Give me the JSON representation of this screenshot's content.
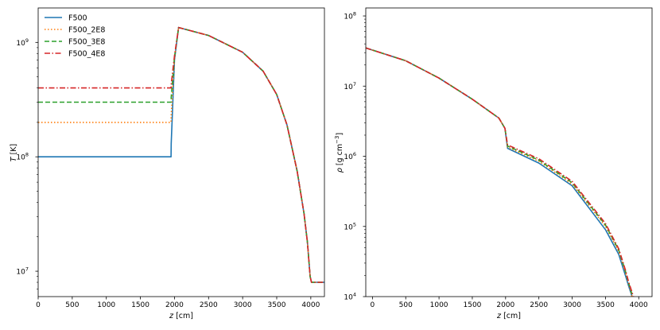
{
  "chart_data": [
    {
      "type": "line",
      "xlabel_var": "z",
      "xlabel_unit": "[cm]",
      "ylabel_var": "T",
      "ylabel_unit": "[K]",
      "xlim": [
        0,
        4200
      ],
      "ylim": [
        6000000.0,
        2000000000.0
      ],
      "yscale": "log",
      "xticks": [
        0,
        500,
        1000,
        1500,
        2000,
        2500,
        3000,
        3500,
        4000
      ],
      "yticks": [
        {
          "exp": 7,
          "value": 10000000.0
        },
        {
          "exp": 8,
          "value": 100000000.0
        },
        {
          "exp": 9,
          "value": 1000000000.0
        }
      ],
      "legend_position": "upper left",
      "series": [
        {
          "name": "F500",
          "color": "#1f77b4",
          "dash": "solid",
          "x": [
            0,
            1950,
            1952,
            2000,
            2060,
            2500,
            3000,
            3300,
            3500,
            3650,
            3800,
            3900,
            3950,
            3990,
            4010,
            4200
          ],
          "y": [
            100000000.0,
            100000000.0,
            130000000.0,
            700000000.0,
            1350000000.0,
            1150000000.0,
            820000000.0,
            560000000.0,
            350000000.0,
            190000000.0,
            75000000.0,
            32000000.0,
            18000000.0,
            9000000.0,
            8000000.0,
            8000000.0
          ]
        },
        {
          "name": "F500_2E8",
          "color": "#ff7f0e",
          "dash": "dotted",
          "x": [
            0,
            1950,
            1952,
            2000,
            2060,
            2500,
            3000,
            3300,
            3500,
            3650,
            3800,
            3900,
            3950,
            3990,
            4010,
            4200
          ],
          "y": [
            200000000.0,
            200000000.0,
            230000000.0,
            720000000.0,
            1350000000.0,
            1150000000.0,
            820000000.0,
            560000000.0,
            350000000.0,
            190000000.0,
            75000000.0,
            32000000.0,
            18000000.0,
            9000000.0,
            8000000.0,
            8000000.0
          ]
        },
        {
          "name": "F500_3E8",
          "color": "#2ca02c",
          "dash": "dashed",
          "x": [
            0,
            1950,
            1952,
            2000,
            2060,
            2500,
            3000,
            3300,
            3500,
            3650,
            3800,
            3900,
            3950,
            3990,
            4010,
            4200
          ],
          "y": [
            300000000.0,
            300000000.0,
            330000000.0,
            740000000.0,
            1350000000.0,
            1150000000.0,
            820000000.0,
            560000000.0,
            350000000.0,
            190000000.0,
            75000000.0,
            32000000.0,
            18000000.0,
            9000000.0,
            8000000.0,
            8000000.0
          ]
        },
        {
          "name": "F500_4E8",
          "color": "#d62728",
          "dash": "dashdot",
          "x": [
            0,
            1950,
            1952,
            2000,
            2060,
            2500,
            3000,
            3300,
            3500,
            3650,
            3800,
            3900,
            3950,
            3990,
            4010,
            4200
          ],
          "y": [
            400000000.0,
            400000000.0,
            430000000.0,
            760000000.0,
            1350000000.0,
            1150000000.0,
            820000000.0,
            560000000.0,
            350000000.0,
            190000000.0,
            75000000.0,
            32000000.0,
            18000000.0,
            9000000.0,
            8000000.0,
            8000000.0
          ]
        }
      ]
    },
    {
      "type": "line",
      "xlabel_var": "z",
      "xlabel_unit": "[cm]",
      "ylabel_var": "ρ",
      "ylabel_unit": "[g cm",
      "ylabel_sup": "−3",
      "ylabel_end": "]",
      "xlim": [
        -100,
        4200
      ],
      "ylim": [
        10000.0,
        130000000.0
      ],
      "yscale": "log",
      "xticks": [
        0,
        500,
        1000,
        1500,
        2000,
        2500,
        3000,
        3500,
        4000
      ],
      "yticks": [
        {
          "exp": 4,
          "value": 10000.0
        },
        {
          "exp": 5,
          "value": 100000.0
        },
        {
          "exp": 6,
          "value": 1000000.0
        },
        {
          "exp": 7,
          "value": 10000000.0
        },
        {
          "exp": 8,
          "value": 100000000.0
        }
      ],
      "series": [
        {
          "name": "F500",
          "color": "#1f77b4",
          "dash": "solid",
          "x": [
            -100,
            500,
            1000,
            1500,
            1900,
            1990,
            2030,
            2500,
            3000,
            3500,
            3700,
            3800,
            3850,
            3900
          ],
          "y": [
            35000000.0,
            23000000.0,
            13000000.0,
            6500000.0,
            3500000.0,
            2500000.0,
            1300000.0,
            800000.0,
            380000.0,
            90000.0,
            40000.0,
            20000.0,
            14000.0,
            10000.0
          ]
        },
        {
          "name": "F500_2E8",
          "color": "#ff7f0e",
          "dash": "dotted",
          "x": [
            -100,
            500,
            1000,
            1500,
            1900,
            1990,
            2030,
            2500,
            3000,
            3500,
            3700,
            3800,
            3850,
            3900
          ],
          "y": [
            35000000.0,
            23000000.0,
            13000000.0,
            6500000.0,
            3500000.0,
            2500000.0,
            1350000.0,
            850000.0,
            400000.0,
            100000.0,
            44000.0,
            22000.0,
            15000.0,
            10000.0
          ]
        },
        {
          "name": "F500_3E8",
          "color": "#2ca02c",
          "dash": "dashed",
          "x": [
            -100,
            500,
            1000,
            1500,
            1900,
            1990,
            2030,
            2500,
            3000,
            3500,
            3700,
            3800,
            3850,
            3910
          ],
          "y": [
            35000000.0,
            23000000.0,
            13000000.0,
            6500000.0,
            3500000.0,
            2500000.0,
            1400000.0,
            880000.0,
            420000.0,
            105000.0,
            46000.0,
            23000.0,
            15500.0,
            10000.0
          ]
        },
        {
          "name": "F500_4E8",
          "color": "#d62728",
          "dash": "dashdot",
          "x": [
            -100,
            500,
            1000,
            1500,
            1900,
            1990,
            2030,
            2500,
            3000,
            3500,
            3700,
            3800,
            3850,
            3920
          ],
          "y": [
            35000000.0,
            23000000.0,
            13000000.0,
            6500000.0,
            3500000.0,
            2500000.0,
            1450000.0,
            920000.0,
            440000.0,
            110000.0,
            48000.0,
            24000.0,
            16000.0,
            10000.0
          ]
        }
      ]
    }
  ]
}
